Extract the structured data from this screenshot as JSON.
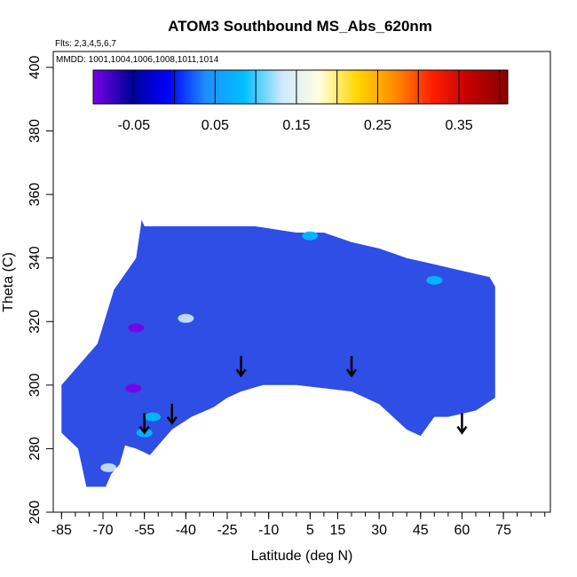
{
  "chart_data": {
    "type": "heatmap",
    "title": "ATOM3 Southbound MS_Abs_620nm",
    "flights_note": "Flts: 2,3,4,5,6,7",
    "dates_note": "MMDD: 1001,1004,1006,1008,1011,1014",
    "xlabel": "Latitude (deg N)",
    "ylabel": "Theta (C)",
    "xlim": [
      -88,
      92
    ],
    "ylim": [
      260,
      405
    ],
    "x_ticks": [
      -85,
      -70,
      -55,
      -40,
      -25,
      -10,
      5,
      15,
      30,
      45,
      60,
      75
    ],
    "x_minor_step": 5,
    "y_ticks": [
      260,
      280,
      300,
      320,
      340,
      360,
      380,
      400
    ],
    "colorbar": {
      "range": [
        -0.1,
        0.41
      ],
      "ticks": [
        -0.05,
        0.05,
        0.15,
        0.25,
        0.35
      ],
      "tick_labels": [
        "-0.05",
        "0.05",
        "0.15",
        "0.25",
        "0.35"
      ],
      "divisions": [
        -0.1,
        -0.05,
        0.0,
        0.05,
        0.1,
        0.15,
        0.2,
        0.25,
        0.3,
        0.35,
        0.4
      ],
      "colors": [
        "#7a00e6",
        "#000099",
        "#0000ff",
        "#1e90ff",
        "#00bfff",
        "#cfe8ff",
        "#ffffe0",
        "#ffd700",
        "#ff8c00",
        "#ff2000",
        "#c00000",
        "#8b0000"
      ]
    },
    "field": {
      "background_color": "#2e4ee6",
      "outline_top": [
        [
          -72,
          313
        ],
        [
          -66,
          330
        ],
        [
          -58,
          340
        ],
        [
          -56,
          352
        ],
        [
          -55,
          350
        ],
        [
          -45,
          350
        ],
        [
          -30,
          350
        ],
        [
          -15,
          350
        ],
        [
          0,
          348
        ],
        [
          10,
          348
        ],
        [
          20,
          345
        ],
        [
          30,
          343
        ],
        [
          40,
          340
        ],
        [
          50,
          338
        ],
        [
          60,
          336
        ],
        [
          70,
          334
        ],
        [
          72,
          331
        ]
      ],
      "outline_bottom": [
        [
          72,
          296
        ],
        [
          65,
          292
        ],
        [
          55,
          290
        ],
        [
          50,
          290
        ],
        [
          45,
          284
        ],
        [
          40,
          286
        ],
        [
          35,
          290
        ],
        [
          30,
          294
        ],
        [
          25,
          296
        ],
        [
          20,
          298
        ],
        [
          10,
          299
        ],
        [
          0,
          300
        ],
        [
          -12,
          300
        ],
        [
          -20,
          298
        ],
        [
          -25,
          296
        ],
        [
          -30,
          293
        ],
        [
          -38,
          290
        ],
        [
          -45,
          286
        ],
        [
          -50,
          281
        ],
        [
          -53,
          278
        ],
        [
          -58,
          280
        ],
        [
          -62,
          281
        ],
        [
          -64,
          275
        ],
        [
          -67,
          272
        ],
        [
          -69,
          268
        ],
        [
          -76,
          268
        ],
        [
          -79,
          280
        ],
        [
          -85,
          285
        ],
        [
          -85,
          300
        ],
        [
          -80,
          305
        ]
      ],
      "patches": [
        {
          "lat": -59,
          "theta": 299,
          "value": -0.09
        },
        {
          "lat": -58,
          "theta": 318,
          "value": -0.08
        },
        {
          "lat": -55,
          "theta": 285,
          "value": 0.1
        },
        {
          "lat": -52,
          "theta": 290,
          "value": 0.08
        },
        {
          "lat": -40,
          "theta": 321,
          "value": 0.12
        },
        {
          "lat": 50,
          "theta": 333,
          "value": 0.1
        },
        {
          "lat": -68,
          "theta": 274,
          "value": 0.12
        },
        {
          "lat": 5,
          "theta": 347,
          "value": 0.08
        }
      ]
    },
    "arrows_latitude": [
      -55,
      -45,
      -20,
      20,
      60
    ],
    "arrows_theta": [
      285,
      288,
      303,
      303,
      285
    ]
  }
}
